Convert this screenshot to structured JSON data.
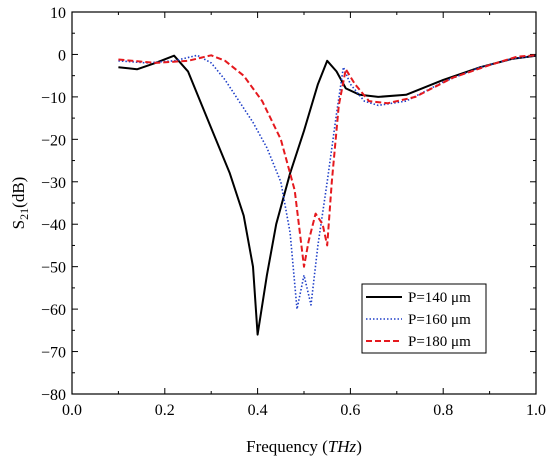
{
  "chart_data": {
    "type": "line",
    "xlabel": "Frequency",
    "xlabel_unit": "THz",
    "ylabel_main": "S",
    "ylabel_sub": "21",
    "ylabel_unit": "(dB)",
    "xlim": [
      0.0,
      1.0
    ],
    "ylim": [
      -80,
      10
    ],
    "x_ticks": [
      "0.0",
      "0.2",
      "0.4",
      "0.6",
      "0.8",
      "1.0"
    ],
    "y_ticks": [
      "10",
      "0",
      "−10",
      "−20",
      "−30",
      "−40",
      "−50",
      "−60",
      "−70",
      "−80"
    ],
    "grid": false,
    "legend_position": "lower-right",
    "series": [
      {
        "name": "P=140 μm",
        "color": "#000000",
        "style": "solid",
        "points": [
          [
            0.1,
            -3
          ],
          [
            0.14,
            -3.5
          ],
          [
            0.18,
            -2
          ],
          [
            0.22,
            -0.3
          ],
          [
            0.25,
            -4
          ],
          [
            0.28,
            -12
          ],
          [
            0.31,
            -20
          ],
          [
            0.34,
            -28
          ],
          [
            0.37,
            -38
          ],
          [
            0.39,
            -50
          ],
          [
            0.4,
            -66
          ],
          [
            0.42,
            -52
          ],
          [
            0.44,
            -40
          ],
          [
            0.47,
            -28
          ],
          [
            0.5,
            -18
          ],
          [
            0.53,
            -7
          ],
          [
            0.55,
            -1.5
          ],
          [
            0.57,
            -4
          ],
          [
            0.59,
            -8
          ],
          [
            0.62,
            -9.5
          ],
          [
            0.66,
            -10
          ],
          [
            0.72,
            -9.5
          ],
          [
            0.8,
            -6
          ],
          [
            0.88,
            -3
          ],
          [
            0.95,
            -1
          ],
          [
            1.0,
            -0.3
          ]
        ]
      },
      {
        "name": "P=160 μm",
        "color": "#1f3fc8",
        "style": "dotted",
        "points": [
          [
            0.1,
            -1.5
          ],
          [
            0.16,
            -2
          ],
          [
            0.22,
            -1.5
          ],
          [
            0.27,
            -0.2
          ],
          [
            0.3,
            -2
          ],
          [
            0.33,
            -6
          ],
          [
            0.36,
            -11
          ],
          [
            0.39,
            -16
          ],
          [
            0.42,
            -22
          ],
          [
            0.45,
            -30
          ],
          [
            0.47,
            -42
          ],
          [
            0.485,
            -60
          ],
          [
            0.5,
            -52
          ],
          [
            0.515,
            -59
          ],
          [
            0.53,
            -45
          ],
          [
            0.55,
            -30
          ],
          [
            0.57,
            -14
          ],
          [
            0.585,
            -3
          ],
          [
            0.6,
            -7
          ],
          [
            0.63,
            -11
          ],
          [
            0.66,
            -12
          ],
          [
            0.72,
            -11
          ],
          [
            0.8,
            -6.5
          ],
          [
            0.88,
            -3
          ],
          [
            0.95,
            -1
          ],
          [
            1.0,
            -0.3
          ]
        ]
      },
      {
        "name": "P=180 μm",
        "color": "#e5191e",
        "style": "dashed",
        "points": [
          [
            0.1,
            -1.2
          ],
          [
            0.18,
            -2
          ],
          [
            0.25,
            -1.5
          ],
          [
            0.3,
            -0.2
          ],
          [
            0.33,
            -1.5
          ],
          [
            0.37,
            -5
          ],
          [
            0.41,
            -11
          ],
          [
            0.45,
            -20
          ],
          [
            0.48,
            -32
          ],
          [
            0.5,
            -50
          ],
          [
            0.51,
            -44
          ],
          [
            0.525,
            -37.5
          ],
          [
            0.54,
            -40
          ],
          [
            0.55,
            -45
          ],
          [
            0.56,
            -30
          ],
          [
            0.575,
            -12
          ],
          [
            0.59,
            -3.5
          ],
          [
            0.61,
            -7
          ],
          [
            0.64,
            -11
          ],
          [
            0.68,
            -11.5
          ],
          [
            0.74,
            -10
          ],
          [
            0.82,
            -5.5
          ],
          [
            0.9,
            -2.5
          ],
          [
            0.96,
            -0.5
          ],
          [
            1.0,
            -0.2
          ]
        ]
      }
    ]
  }
}
